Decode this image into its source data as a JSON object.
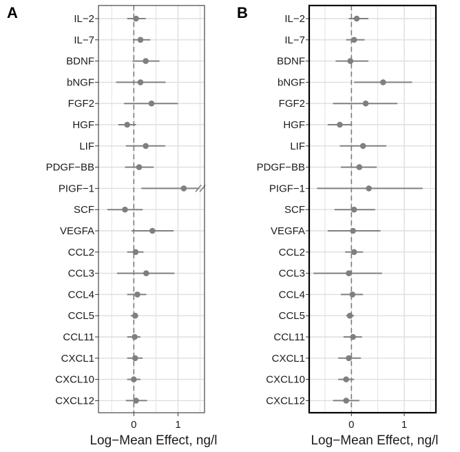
{
  "chart_data": [
    {
      "type": "scatter",
      "panel_label": "A",
      "categories": [
        "IL−2",
        "IL−7",
        "BDNF",
        "bNGF",
        "FGF2",
        "HGF",
        "LIF",
        "PDGF−BB",
        "PIGF−1",
        "SCF",
        "VEGFA",
        "CCL2",
        "CCL3",
        "CCL4",
        "CCL5",
        "CCL11",
        "CXCL1",
        "CXCL10",
        "CXCL12"
      ],
      "estimates": [
        0.05,
        0.15,
        0.27,
        0.15,
        0.4,
        -0.15,
        0.27,
        0.12,
        1.13,
        -0.2,
        0.42,
        0.04,
        0.28,
        0.08,
        0.03,
        0.02,
        0.03,
        0.0,
        0.05
      ],
      "ci_low": [
        -0.15,
        -0.02,
        -0.03,
        -0.4,
        -0.22,
        -0.35,
        -0.18,
        -0.2,
        0.17,
        -0.6,
        -0.05,
        -0.15,
        -0.38,
        -0.15,
        -0.07,
        -0.15,
        -0.15,
        -0.15,
        -0.18
      ],
      "ci_high": [
        0.27,
        0.37,
        0.58,
        0.72,
        1.0,
        0.05,
        0.71,
        0.45,
        1.48,
        0.2,
        0.9,
        0.22,
        0.92,
        0.28,
        0.1,
        0.15,
        0.2,
        0.15,
        0.3
      ],
      "truncated_high": [
        false,
        false,
        false,
        false,
        false,
        false,
        false,
        false,
        true,
        false,
        false,
        false,
        false,
        false,
        false,
        false,
        false,
        false,
        false
      ],
      "xlabel": "Log−Mean Effect, ng/l",
      "xlim": [
        -0.8,
        1.6
      ],
      "xticks": [
        0,
        1
      ],
      "xtick_labels": [
        "0",
        "1"
      ],
      "reference_line": 0,
      "grid": true,
      "frame_bold": false
    },
    {
      "type": "scatter",
      "panel_label": "B",
      "categories": [
        "IL−2",
        "IL−7",
        "BDNF",
        "bNGF",
        "FGF2",
        "HGF",
        "LIF",
        "PDGF−BB",
        "PIGF−1",
        "SCF",
        "VEGFA",
        "CCL2",
        "CCL3",
        "CCL4",
        "CCL5",
        "CCL11",
        "CXCL1",
        "CXCL10",
        "CXCL12"
      ],
      "estimates": [
        0.1,
        0.05,
        -0.02,
        0.6,
        0.27,
        -0.22,
        0.22,
        0.15,
        0.33,
        0.05,
        0.03,
        0.05,
        -0.05,
        0.02,
        -0.03,
        0.03,
        -0.05,
        -0.1,
        -0.1
      ],
      "ci_low": [
        -0.05,
        -0.1,
        -0.3,
        0.05,
        -0.35,
        -0.45,
        -0.22,
        -0.2,
        -0.65,
        -0.32,
        -0.45,
        -0.12,
        -0.72,
        -0.2,
        -0.1,
        -0.15,
        -0.25,
        -0.25,
        -0.35
      ],
      "ci_high": [
        0.32,
        0.25,
        0.32,
        1.15,
        0.87,
        0.0,
        0.66,
        0.48,
        1.35,
        0.45,
        0.55,
        0.22,
        0.58,
        0.22,
        0.05,
        0.2,
        0.18,
        0.05,
        0.15
      ],
      "truncated_high": [
        false,
        false,
        false,
        false,
        false,
        false,
        false,
        false,
        false,
        false,
        false,
        false,
        false,
        false,
        false,
        false,
        false,
        false,
        false
      ],
      "xlabel": "Log−Mean Effect, ng/l",
      "xlim": [
        -0.8,
        1.6
      ],
      "xticks": [
        0,
        1
      ],
      "xtick_labels": [
        "0",
        "1"
      ],
      "reference_line": 0,
      "grid": true,
      "frame_bold": true
    }
  ],
  "colors": {
    "marker": "#7f7f7f",
    "ci_line": "#808080",
    "grid": "#dedede",
    "reference": "#7a7a7a",
    "frame": "#333333",
    "frame_bold": "#000000",
    "text": "#1a1a1a"
  }
}
